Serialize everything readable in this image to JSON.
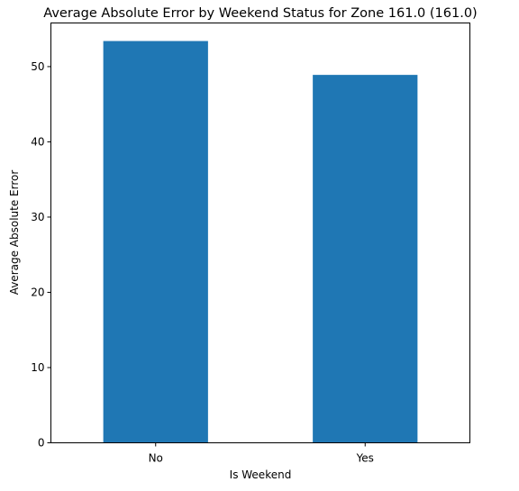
{
  "chart_data": {
    "type": "bar",
    "title": "Average Absolute Error by Weekend Status for Zone 161.0 (161.0)",
    "xlabel": "Is Weekend",
    "ylabel": "Average Absolute Error",
    "categories": [
      "No",
      "Yes"
    ],
    "values": [
      53.4,
      48.9
    ],
    "ylim": [
      0,
      55.8
    ],
    "yticks": [
      0,
      10,
      20,
      30,
      40,
      50
    ],
    "bar_color": "#1f77b4",
    "grid": false,
    "legend": "none"
  }
}
